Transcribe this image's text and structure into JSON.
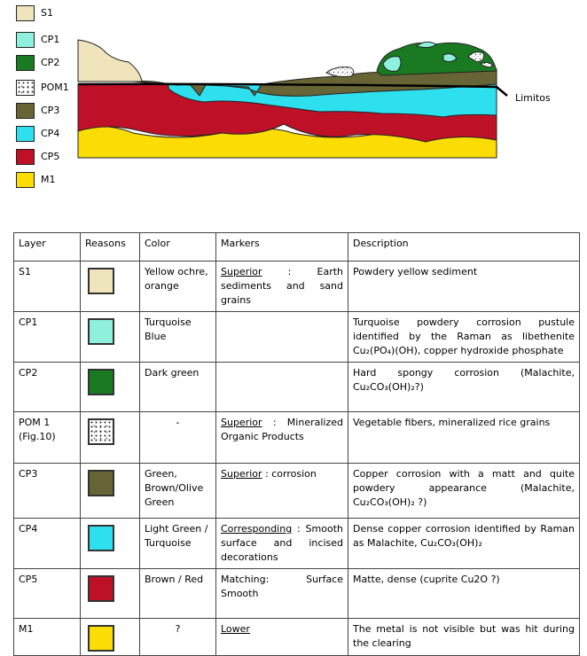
{
  "legend": {
    "items": [
      "S1",
      "CP1",
      "CP2",
      "POM1",
      "CP3",
      "CP4",
      "CP5",
      "M1"
    ]
  },
  "diagram": {
    "boundary_label": "Limitos"
  },
  "table": {
    "header": [
      "Layer",
      "Reasons",
      "Color",
      "Markers",
      "Description"
    ],
    "rows": [
      {
        "layer": "S1",
        "color": "Yellow ochre, orange",
        "markers": {
          "term": "Superior",
          "text": ": Earth sediments and sand grains"
        },
        "description": "Powdery yellow sediment"
      },
      {
        "layer": "CP1",
        "color": "Turquoise Blue",
        "description": "Turquoise powdery corrosion pustule identified by the Raman as libethenite Cu₂(PO₄)(OH), copper hydroxide phosphate"
      },
      {
        "layer": "CP2",
        "color": "Dark green",
        "description": "Hard spongy corrosion (Malachite, Cu₂CO₃(OH)₂?)"
      },
      {
        "layer": "POM 1 (Fig.10)",
        "color": "-",
        "markers": {
          "term": "Superior",
          "text": ": Mineralized Organic Products"
        },
        "description": "Vegetable fibers, mineralized rice grains"
      },
      {
        "layer": "CP3",
        "color": "Green, Brown/Olive Green",
        "markers": {
          "term": "Superior",
          "text": ": corrosion"
        },
        "description": "Copper corrosion with a matt and quite powdery appearance (Malachite, Cu₂CO₃(OH)₂ ?)"
      },
      {
        "layer": "CP4",
        "color": "Light Green / Turquoise",
        "markers": {
          "term": "Corresponding",
          "text": ": Smooth surface and incised decorations"
        },
        "description": "Dense copper corrosion identified by Raman as Malachite, Cu₂CO₃(OH)₂"
      },
      {
        "layer": "CP5",
        "color": "Brown / Red",
        "markers": {
          "text": "Matching: Surface Smooth"
        },
        "description": "Matte, dense (cuprite Cu2O ?)"
      },
      {
        "layer": "M1",
        "color": "?",
        "markers": {
          "term": "Lower"
        },
        "description": "The metal is not visible but was hit during the clearing"
      }
    ]
  }
}
